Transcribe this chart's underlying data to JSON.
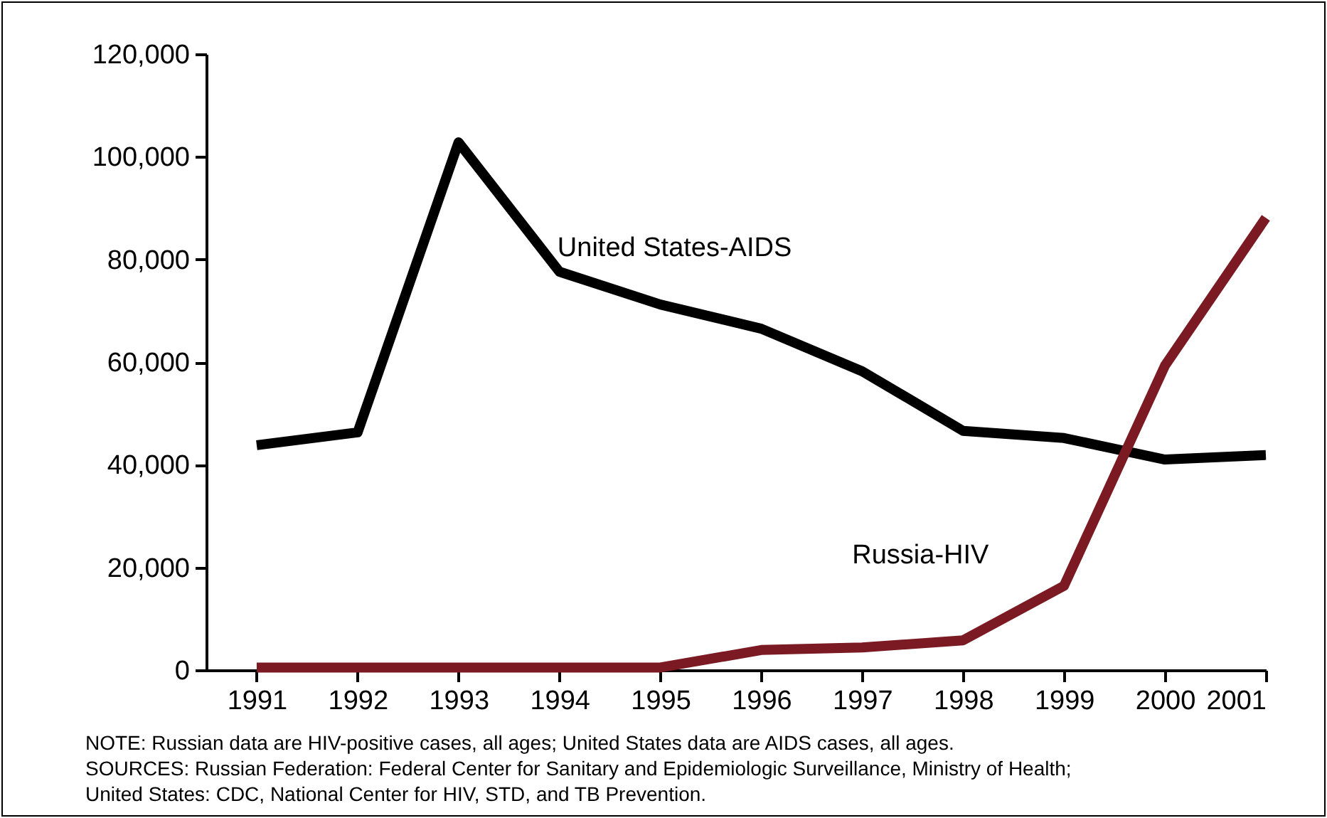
{
  "chart_data": {
    "type": "line",
    "x": [
      1991,
      1992,
      1993,
      1994,
      1995,
      1996,
      1997,
      1998,
      1999,
      2000,
      2001
    ],
    "series": [
      {
        "name": "United States-AIDS",
        "color": "#000000",
        "values": [
          43800,
          46300,
          102800,
          77600,
          71200,
          66500,
          58200,
          46600,
          45200,
          41000,
          41900
        ]
      },
      {
        "name": "Russia-HIV",
        "color": "#7b1a22",
        "values": [
          500,
          500,
          500,
          500,
          500,
          3900,
          4400,
          5800,
          16400,
          59300,
          88100
        ]
      }
    ],
    "xlim": [
      1990.5,
      2001
    ],
    "xticks": [
      1991,
      1992,
      1993,
      1994,
      1995,
      1996,
      1997,
      1998,
      1999,
      2000,
      2001
    ],
    "ylim": [
      0,
      120000
    ],
    "yticks": [
      0,
      {
        "value": 20000,
        "label": "20,000"
      },
      {
        "value": 40000,
        "label": "40,000"
      },
      {
        "value": 60000,
        "label": "60,000"
      },
      {
        "value": 80000,
        "label": "80,000"
      },
      {
        "value": 100000,
        "label": "100,000"
      },
      {
        "value": 120000,
        "label": "120,000"
      }
    ],
    "grid": false,
    "marker": "none",
    "line_style": "solid",
    "annotations": [
      "NOTE: Russian data are HIV-positive cases, all ages; United States data are AIDS cases, all ages.",
      "SOURCES: Russian Federation: Federal Center for Sanitary and Epidemiologic Surveillance, Ministry of Health;",
      "United States: CDC, National Center for HIV, STD, and TB Prevention."
    ]
  }
}
